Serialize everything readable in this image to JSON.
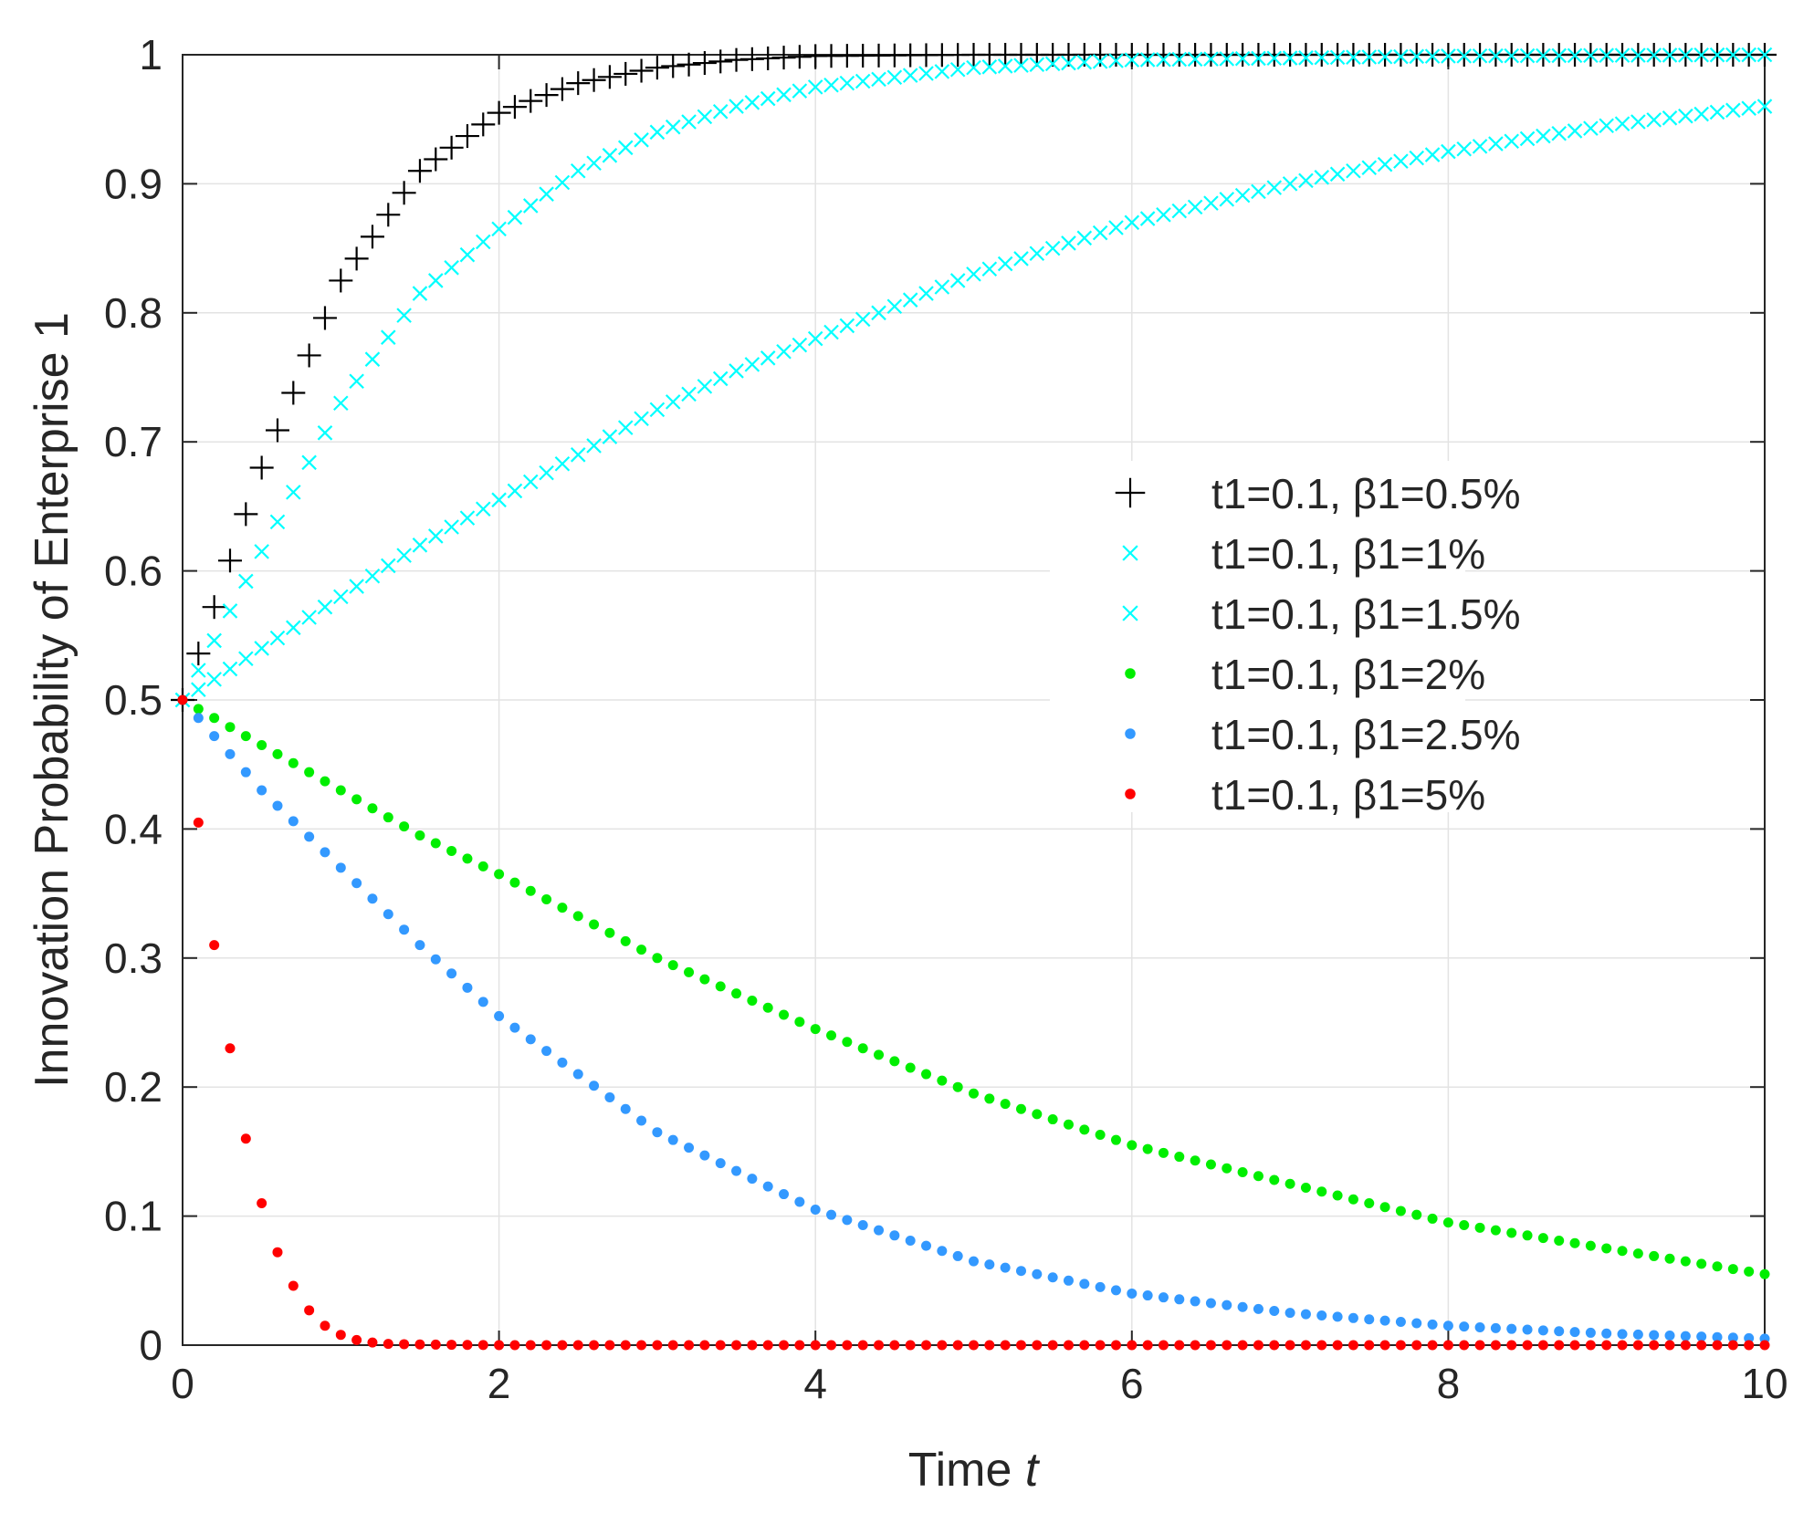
{
  "chart_data": {
    "type": "scatter",
    "title": "",
    "xlabel": "Time",
    "xlabel_var": "t",
    "ylabel": "Innovation Probability of Enterprise 1",
    "xlim": [
      0,
      10
    ],
    "ylim": [
      0,
      1
    ],
    "x_ticks": [
      0,
      2,
      4,
      6,
      8,
      10
    ],
    "y_ticks": [
      0,
      0.1,
      0.2,
      0.3,
      0.4,
      0.5,
      0.6,
      0.7,
      0.8,
      0.9,
      1
    ],
    "x_tick_labels": [
      "0",
      "2",
      "4",
      "6",
      "8",
      "10"
    ],
    "y_tick_labels": [
      "0",
      "0.1",
      "0.2",
      "0.3",
      "0.4",
      "0.5",
      "0.6",
      "0.7",
      "0.8",
      "0.9",
      "1"
    ],
    "grid": true,
    "legend_position": "center-right",
    "sample_step": 0.1,
    "series": [
      {
        "name": "t1=0.1, β1=0.5%",
        "marker": "plus",
        "color": "#000000",
        "x": [
          0,
          0.5,
          1,
          1.5,
          2,
          2.5,
          3,
          3.5,
          4,
          5,
          6,
          8,
          10
        ],
        "y": [
          0.5,
          0.68,
          0.825,
          0.91,
          0.955,
          0.978,
          0.99,
          0.996,
          0.999,
          1,
          1,
          1,
          1
        ]
      },
      {
        "name": "t1=0.1, β1=1%",
        "marker": "x",
        "color": "#00ffff",
        "x": [
          0,
          0.5,
          1,
          1.5,
          2,
          2.5,
          3,
          3.5,
          4,
          5,
          6,
          8,
          10
        ],
        "y": [
          0.5,
          0.615,
          0.73,
          0.815,
          0.865,
          0.91,
          0.94,
          0.96,
          0.975,
          0.99,
          0.996,
          0.999,
          1
        ]
      },
      {
        "name": "t1=0.1, β1=1.5%",
        "marker": "x",
        "color": "#00ffff",
        "x": [
          0,
          0.5,
          1,
          1.5,
          2,
          2.5,
          3,
          3.5,
          4,
          5,
          6,
          7,
          8,
          9,
          10
        ],
        "y": [
          0.5,
          0.54,
          0.58,
          0.62,
          0.655,
          0.69,
          0.725,
          0.755,
          0.78,
          0.83,
          0.87,
          0.9,
          0.925,
          0.945,
          0.96
        ]
      },
      {
        "name": "t1=0.1, β1=2%",
        "marker": "dot",
        "color": "#00ee00",
        "x": [
          0,
          0.5,
          1,
          1.5,
          2,
          3,
          4,
          5,
          6,
          7,
          8,
          9,
          10
        ],
        "y": [
          0.5,
          0.465,
          0.43,
          0.395,
          0.365,
          0.3,
          0.245,
          0.195,
          0.155,
          0.125,
          0.095,
          0.075,
          0.055
        ]
      },
      {
        "name": "t1=0.1, β1=2.5%",
        "marker": "dot",
        "color": "#3399ff",
        "x": [
          0,
          0.5,
          1,
          1.5,
          2,
          3,
          4,
          5,
          6,
          7,
          8,
          9,
          10
        ],
        "y": [
          0.5,
          0.43,
          0.37,
          0.31,
          0.255,
          0.165,
          0.105,
          0.065,
          0.04,
          0.025,
          0.015,
          0.009,
          0.005
        ]
      },
      {
        "name": "t1=0.1, β1=5%",
        "marker": "dot",
        "color": "#ff0000",
        "x": [
          0,
          0.1,
          0.2,
          0.3,
          0.4,
          0.5,
          0.6,
          0.7,
          0.8,
          0.9,
          1.0,
          1.1,
          1.2,
          1.3,
          1.5,
          2,
          3,
          10
        ],
        "y": [
          0.5,
          0.405,
          0.31,
          0.23,
          0.16,
          0.11,
          0.072,
          0.046,
          0.027,
          0.015,
          0.008,
          0.004,
          0.002,
          0.001,
          0.0005,
          0,
          0,
          0
        ]
      }
    ]
  }
}
